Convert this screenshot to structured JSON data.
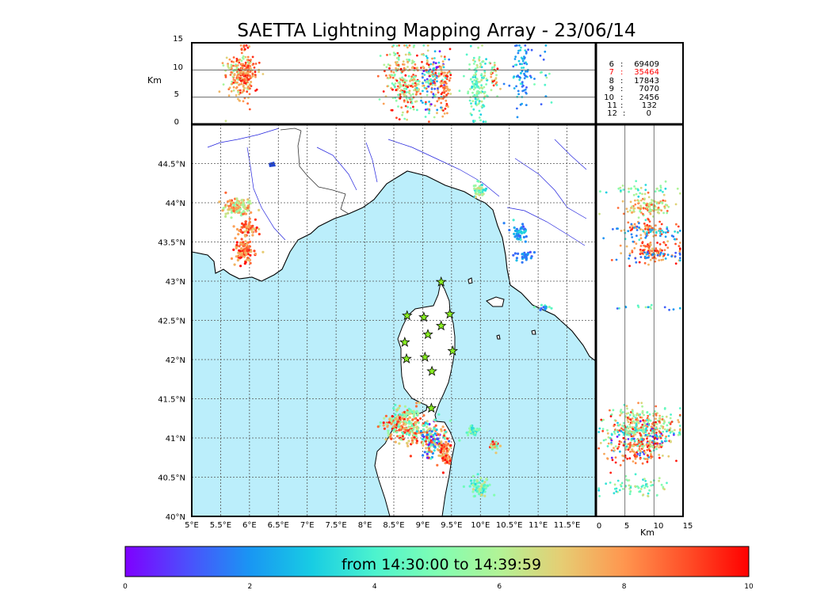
{
  "title": "SAETTA Lightning Mapping Array - 23/06/14",
  "altitude_axis": {
    "label": "Km",
    "ticks": [
      "0",
      "5",
      "10",
      "15"
    ]
  },
  "map_axes": {
    "lon_ticks": [
      "5°E",
      "5.5°E",
      "6°E",
      "6.5°E",
      "7°E",
      "7.5°E",
      "8°E",
      "8.5°E",
      "9°E",
      "9.5°E",
      "10°E",
      "10.5°E",
      "11°E",
      "11.5°E"
    ],
    "lat_ticks": [
      "40°N",
      "40.5°N",
      "41°N",
      "41.5°N",
      "42°N",
      "42.5°N",
      "43°N",
      "43.5°N",
      "44°N",
      "44.5°N"
    ]
  },
  "right_panel_axis": {
    "label": "Km",
    "ticks": [
      "0",
      "5",
      "10",
      "15"
    ]
  },
  "station_counts": [
    {
      "stations": "6",
      "count": "69409",
      "highlight": false
    },
    {
      "stations": "7",
      "count": "35464",
      "highlight": true
    },
    {
      "stations": "8",
      "count": "17843",
      "highlight": false
    },
    {
      "stations": "9",
      "count": "7070",
      "highlight": false
    },
    {
      "stations": "10",
      "count": "2456",
      "highlight": false
    },
    {
      "stations": "11",
      "count": "132",
      "highlight": false
    },
    {
      "stations": "12",
      "count": "0",
      "highlight": false
    }
  ],
  "colorbar": {
    "label": "from 14:30:00 to 14:39:59",
    "ticks": [
      "0",
      "2",
      "4",
      "6",
      "8",
      "10"
    ],
    "range": [
      0,
      10
    ]
  },
  "colors": {
    "sea": "#bbeefb",
    "highlight": "#ff0000"
  },
  "chart_data": {
    "type": "scatter",
    "x_range": [
      5,
      12
    ],
    "y_range": [
      40,
      45
    ],
    "altitude_range": [
      0,
      15
    ],
    "stations": [
      {
        "lon": 9.32,
        "lat": 42.99
      },
      {
        "lon": 8.73,
        "lat": 42.56
      },
      {
        "lon": 9.02,
        "lat": 42.54
      },
      {
        "lon": 9.47,
        "lat": 42.58
      },
      {
        "lon": 9.32,
        "lat": 42.43
      },
      {
        "lon": 9.09,
        "lat": 42.32
      },
      {
        "lon": 8.69,
        "lat": 42.22
      },
      {
        "lon": 9.52,
        "lat": 42.11
      },
      {
        "lon": 8.72,
        "lat": 42.01
      },
      {
        "lon": 9.04,
        "lat": 42.03
      },
      {
        "lon": 9.16,
        "lat": 41.85
      },
      {
        "lon": 9.15,
        "lat": 41.38
      }
    ],
    "clusters": [
      {
        "lon": 5.8,
        "lat": 43.95,
        "slon": 0.13,
        "slat": 0.06,
        "alt": 9,
        "salt": 2,
        "t0": 5,
        "t1": 9,
        "n": 120
      },
      {
        "lon": 5.95,
        "lat": 43.68,
        "slon": 0.09,
        "slat": 0.05,
        "alt": 9,
        "salt": 2,
        "t0": 7,
        "t1": 10,
        "n": 60
      },
      {
        "lon": 5.92,
        "lat": 43.38,
        "slon": 0.09,
        "slat": 0.08,
        "alt": 10,
        "salt": 2,
        "t0": 7,
        "t1": 10,
        "n": 110
      },
      {
        "lon": 10.0,
        "lat": 44.15,
        "slon": 0.06,
        "slat": 0.04,
        "alt": 8,
        "salt": 3,
        "t0": 3,
        "t1": 7,
        "n": 40
      },
      {
        "lon": 10.68,
        "lat": 43.63,
        "slon": 0.07,
        "slat": 0.05,
        "alt": 9,
        "salt": 3,
        "t0": 1,
        "t1": 4,
        "n": 50
      },
      {
        "lon": 10.75,
        "lat": 43.32,
        "slon": 0.06,
        "slat": 0.03,
        "alt": 9,
        "salt": 3,
        "t0": 1,
        "t1": 3,
        "n": 30
      },
      {
        "lon": 11.1,
        "lat": 42.66,
        "slon": 0.06,
        "slat": 0.02,
        "alt": 9,
        "salt": 3,
        "t0": 1,
        "t1": 6,
        "n": 15
      },
      {
        "lon": 8.7,
        "lat": 41.18,
        "slon": 0.17,
        "slat": 0.12,
        "alt": 8,
        "salt": 3,
        "t0": 4,
        "t1": 10,
        "n": 260
      },
      {
        "lon": 9.18,
        "lat": 40.98,
        "slon": 0.12,
        "slat": 0.1,
        "alt": 8,
        "salt": 3,
        "t0": 0,
        "t1": 10,
        "n": 170
      },
      {
        "lon": 9.4,
        "lat": 40.8,
        "slon": 0.05,
        "slat": 0.08,
        "alt": 8,
        "salt": 3,
        "t0": 7,
        "t1": 10,
        "n": 70
      },
      {
        "lon": 9.88,
        "lat": 41.08,
        "slon": 0.05,
        "slat": 0.03,
        "alt": 7,
        "salt": 3,
        "t0": 3,
        "t1": 6,
        "n": 40
      },
      {
        "lon": 10.25,
        "lat": 40.9,
        "slon": 0.04,
        "slat": 0.03,
        "alt": 9,
        "salt": 2,
        "t0": 4,
        "t1": 10,
        "n": 30
      },
      {
        "lon": 9.98,
        "lat": 40.38,
        "slon": 0.09,
        "slat": 0.06,
        "alt": 7,
        "salt": 3,
        "t0": 3,
        "t1": 7,
        "n": 70
      }
    ]
  }
}
